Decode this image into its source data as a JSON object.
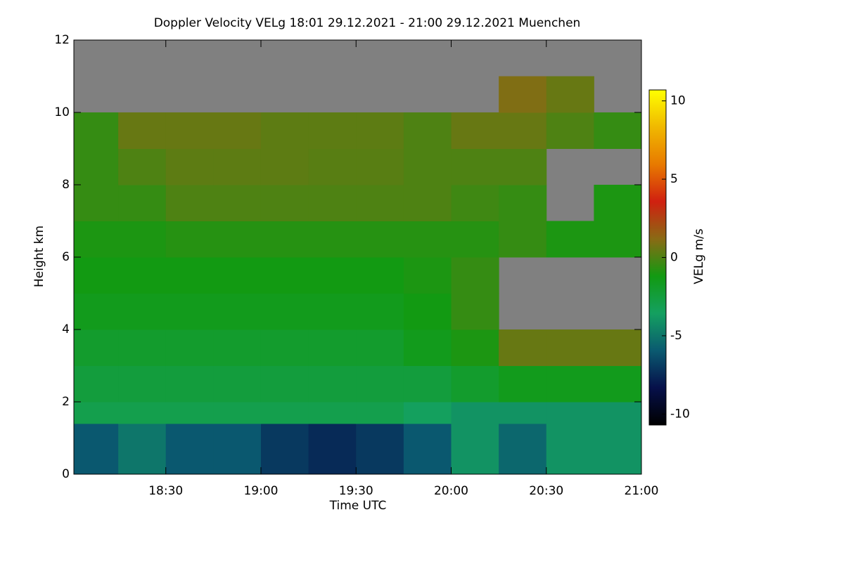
{
  "chart_data": {
    "type": "heatmap",
    "title": "Doppler Velocity VELg   18:01 29.12.2021 - 21:00 29.12.2021 Muenchen",
    "x_label": "Time UTC",
    "y_label": "Height km",
    "colorbar_label": "VELg m/s",
    "xlim": [
      1081,
      1260
    ],
    "xticks": [
      {
        "value": 1110,
        "label": "18:30"
      },
      {
        "value": 1140,
        "label": "19:00"
      },
      {
        "value": 1170,
        "label": "19:30"
      },
      {
        "value": 1200,
        "label": "20:00"
      },
      {
        "value": 1230,
        "label": "20:30"
      },
      {
        "value": 1260,
        "label": "21:00"
      }
    ],
    "ylim": [
      0,
      12
    ],
    "yticks": [
      0,
      2,
      4,
      6,
      8,
      10,
      12
    ],
    "zlim": [
      -10.7,
      10.7
    ],
    "zticks": [
      -10,
      -5,
      0,
      5,
      10
    ],
    "colormap": [
      "#000000",
      "#06104a",
      "#0a5a70",
      "#14a060",
      "#129a12",
      "#8a6a14",
      "#d02010",
      "#e87a00",
      "#f0b800",
      "#ffff00"
    ],
    "missing_color": "#808080",
    "x_edges": [
      1081,
      1095,
      1110,
      1125,
      1140,
      1155,
      1170,
      1185,
      1200,
      1215,
      1230,
      1245,
      1260
    ],
    "y_edges": [
      0,
      1.4,
      2,
      3,
      4,
      5,
      6,
      7,
      8,
      9,
      10,
      11,
      12
    ],
    "z": [
      [
        -6,
        -5,
        -6,
        -6,
        -7,
        -7.5,
        -7,
        -6,
        -4,
        -5.5,
        -4,
        -4
      ],
      [
        -3,
        -3,
        -3,
        -3,
        -3,
        -3,
        -3,
        -3.5,
        -4,
        -4,
        -4,
        -4
      ],
      [
        -2.5,
        -2.5,
        -2.5,
        -2.5,
        -2.5,
        -2.5,
        -2.5,
        -2.5,
        -2,
        -1.5,
        -1.5,
        -1.5
      ],
      [
        -2,
        -2,
        -2,
        -2,
        -2,
        -2,
        -2,
        -1.5,
        -1,
        0.5,
        0.5,
        0.5
      ],
      [
        -1.5,
        -1.5,
        -1.5,
        -1.5,
        -1.5,
        -1.5,
        -1.5,
        -1.2,
        -0.5,
        null,
        null,
        null
      ],
      [
        -1.2,
        -1.2,
        -1.2,
        -1.2,
        -1.2,
        -1.2,
        -1.2,
        -1,
        -0.5,
        null,
        null,
        null
      ],
      [
        -1,
        -1,
        -0.8,
        -0.8,
        -0.8,
        -0.8,
        -0.8,
        -0.8,
        -0.8,
        -0.5,
        -1,
        -1
      ],
      [
        -0.5,
        -0.5,
        0,
        0,
        0,
        0,
        0,
        0,
        -0.3,
        -0.5,
        null,
        -1
      ],
      [
        -0.5,
        0,
        0.3,
        0.3,
        0.3,
        0.2,
        0.2,
        0,
        0,
        0,
        null,
        null
      ],
      [
        -0.5,
        0.5,
        0.5,
        0.5,
        0.3,
        0.3,
        0.3,
        0,
        0.5,
        0.5,
        0,
        -0.5
      ],
      [
        null,
        null,
        null,
        null,
        null,
        null,
        null,
        null,
        null,
        1,
        0.5,
        null
      ],
      [
        null,
        null,
        null,
        null,
        null,
        null,
        null,
        null,
        null,
        null,
        null,
        null
      ]
    ]
  }
}
